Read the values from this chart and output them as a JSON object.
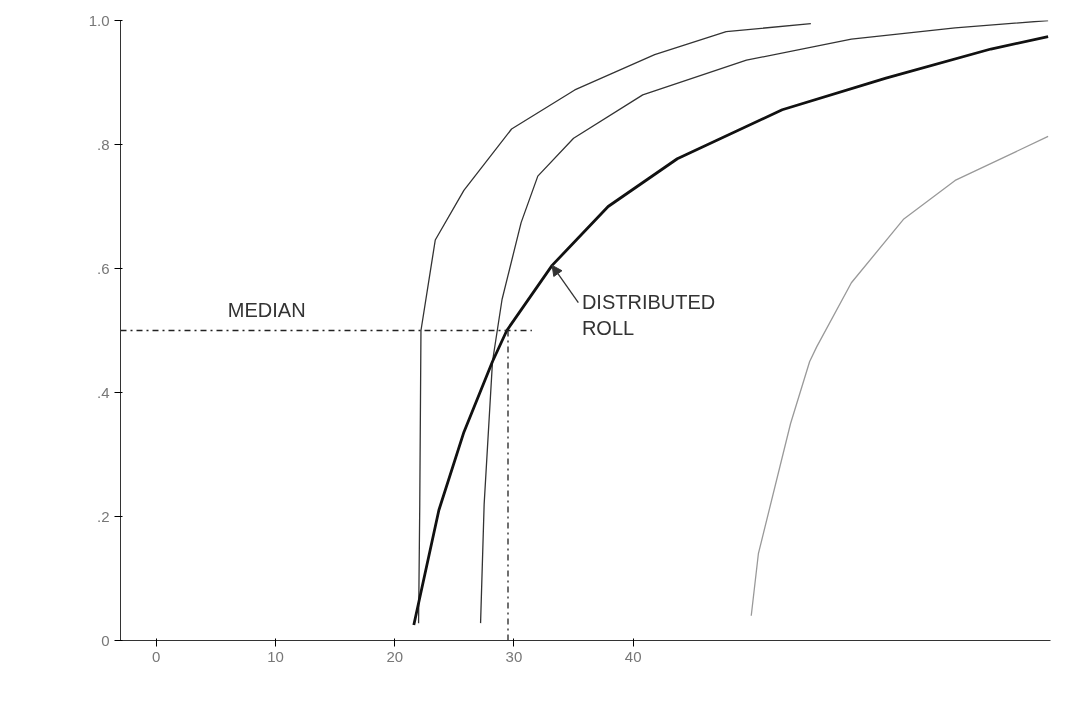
{
  "chart_data": {
    "type": "line",
    "xlim": [
      -3,
      75
    ],
    "ylim": [
      0,
      1.0
    ],
    "xticks": [
      0,
      10,
      20,
      30,
      40
    ],
    "yticks": [
      0,
      {
        "value": 0.2,
        "label": ".2"
      },
      {
        "value": 0.4,
        "label": ".4"
      },
      {
        "value": 0.6,
        "label": ".6"
      },
      {
        "value": 0.8,
        "label": ".8"
      },
      {
        "value": 1.0,
        "label": "1.0"
      }
    ],
    "grid": false,
    "marker": "none",
    "series": [
      {
        "color": "#333333",
        "line_style": "solid",
        "x": [
          22.0,
          22.1,
          22.2,
          23.4,
          25.8,
          29.8,
          35.1,
          41.8,
          47.8,
          54.9
        ],
        "values": [
          0.028,
          0.22,
          0.5,
          0.646,
          0.726,
          0.825,
          0.888,
          0.945,
          0.982,
          0.995
        ]
      },
      {
        "color": "#333333",
        "line_style": "solid",
        "x": [
          27.2,
          27.5,
          28.2,
          29.0,
          30.6,
          32.0,
          35.0,
          40.8,
          49.5,
          58.3,
          67.0,
          74.8
        ],
        "values": [
          0.028,
          0.22,
          0.45,
          0.55,
          0.674,
          0.749,
          0.81,
          0.88,
          0.936,
          0.97,
          0.988,
          1.0
        ]
      },
      {
        "color": "#111111",
        "line_style": "solid",
        "x": [
          21.6,
          23.7,
          25.8,
          28.2,
          29.4,
          33.2,
          37.9,
          43.7,
          52.5,
          61.2,
          70.0,
          74.8
        ],
        "values": [
          0.025,
          0.21,
          0.336,
          0.45,
          0.5,
          0.605,
          0.7,
          0.777,
          0.856,
          0.907,
          0.954,
          0.974
        ]
      },
      {
        "color": "#999999",
        "line_style": "solid",
        "x": [
          49.9,
          50.5,
          53.2,
          54.8,
          55.4,
          58.3,
          62.7,
          67.0,
          74.8
        ],
        "values": [
          0.04,
          0.14,
          0.35,
          0.45,
          0.474,
          0.577,
          0.68,
          0.742,
          0.813
        ]
      },
      {
        "color": "#222222",
        "line_style": "dashed",
        "x": [
          -3,
          31.5
        ],
        "values": [
          0.5,
          0.5
        ]
      },
      {
        "color": "#222222",
        "line_style": "dashed",
        "x": [
          29.5,
          29.5
        ],
        "values": [
          0,
          0.5
        ]
      }
    ],
    "annotations": [
      {
        "text": "MEDIAN",
        "x": 6,
        "y": 0.5
      },
      {
        "text": "DISTRIBUTED\nROLL",
        "x": 33.2,
        "y": 0.605
      }
    ]
  }
}
